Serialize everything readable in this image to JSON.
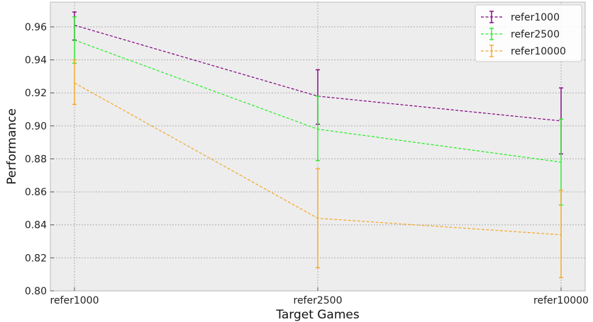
{
  "chart_data": {
    "type": "line",
    "title": "",
    "xlabel": "Target Games",
    "ylabel": "Performance",
    "categories": [
      "refer1000",
      "refer2500",
      "refer10000"
    ],
    "ylim": [
      0.8,
      0.975
    ],
    "yticks": [
      "0.80",
      "0.82",
      "0.84",
      "0.86",
      "0.88",
      "0.90",
      "0.92",
      "0.94",
      "0.96"
    ],
    "grid": true,
    "legend_position": "top-right",
    "series": [
      {
        "name": "refer1000",
        "color": "#800080",
        "values": [
          0.961,
          0.918,
          0.903
        ],
        "err_low": [
          0.952,
          0.901,
          0.883
        ],
        "err_high": [
          0.969,
          0.934,
          0.923
        ]
      },
      {
        "name": "refer2500",
        "color": "#22ee22",
        "values": [
          0.952,
          0.898,
          0.878
        ],
        "err_low": [
          0.938,
          0.879,
          0.852
        ],
        "err_high": [
          0.966,
          0.918,
          0.904
        ]
      },
      {
        "name": "refer10000",
        "color": "#f5a623",
        "values": [
          0.926,
          0.844,
          0.834
        ],
        "err_low": [
          0.913,
          0.814,
          0.808
        ],
        "err_high": [
          0.94,
          0.874,
          0.861
        ]
      }
    ]
  }
}
